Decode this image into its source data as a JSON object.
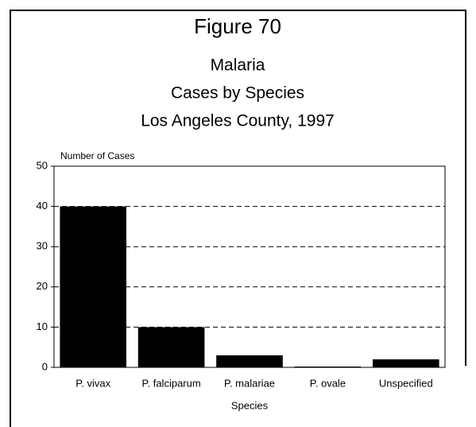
{
  "chart_data": {
    "type": "bar",
    "title": "Figure 70",
    "subtitle": [
      "Malaria",
      "Cases by Species",
      "Los Angeles County, 1997"
    ],
    "y_label": "Number of Cases",
    "x_label": "Species",
    "categories": [
      "P. vivax",
      "P. falciparum",
      "P. malariae",
      "P. ovale",
      "Unspecified"
    ],
    "values": [
      40,
      10,
      3,
      0,
      2
    ],
    "color": "#000000",
    "ylim": [
      0,
      50
    ],
    "yticks": [
      0,
      10,
      20,
      30,
      40,
      50
    ],
    "grid": true
  }
}
